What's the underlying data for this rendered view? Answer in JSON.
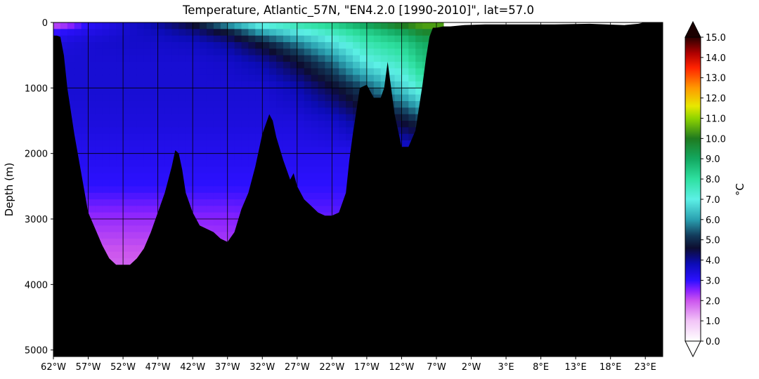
{
  "chart_data": {
    "type": "heatmap",
    "title": "Temperature, Atlantic_57N, \"EN4.2.0 [1990-2010]\", lat=57.0",
    "xlabel": "",
    "ylabel": "Depth (m)",
    "colorbar_label": "°C",
    "xlim": [
      -62,
      25.5
    ],
    "ylim": [
      5100,
      0
    ],
    "x_ticks": [
      {
        "value": -62,
        "label": "62°W"
      },
      {
        "value": -57,
        "label": "57°W"
      },
      {
        "value": -52,
        "label": "52°W"
      },
      {
        "value": -47,
        "label": "47°W"
      },
      {
        "value": -42,
        "label": "42°W"
      },
      {
        "value": -37,
        "label": "37°W"
      },
      {
        "value": -32,
        "label": "32°W"
      },
      {
        "value": -27,
        "label": "27°W"
      },
      {
        "value": -22,
        "label": "22°W"
      },
      {
        "value": -17,
        "label": "17°W"
      },
      {
        "value": -12,
        "label": "12°W"
      },
      {
        "value": -7,
        "label": "7°W"
      },
      {
        "value": -2,
        "label": "2°W"
      },
      {
        "value": 3,
        "label": "3°E"
      },
      {
        "value": 8,
        "label": "8°E"
      },
      {
        "value": 13,
        "label": "13°E"
      },
      {
        "value": 18,
        "label": "18°E"
      },
      {
        "value": 23,
        "label": "23°E"
      }
    ],
    "y_ticks": [
      {
        "value": 0,
        "label": "0"
      },
      {
        "value": 1000,
        "label": "1000"
      },
      {
        "value": 2000,
        "label": "2000"
      },
      {
        "value": 3000,
        "label": "3000"
      },
      {
        "value": 4000,
        "label": "4000"
      },
      {
        "value": 5000,
        "label": "5000"
      }
    ],
    "colorbar": {
      "min": 0,
      "max": 15,
      "extend": "both",
      "ticks": [
        "0.0",
        "1.0",
        "2.0",
        "3.0",
        "4.0",
        "5.0",
        "6.0",
        "7.0",
        "8.0",
        "9.0",
        "10.0",
        "11.0",
        "12.0",
        "13.0",
        "14.0",
        "15.0"
      ],
      "stops": [
        {
          "v": 0,
          "color": "#ffffff"
        },
        {
          "v": 1.0,
          "color": "#f2c4f7"
        },
        {
          "v": 2.0,
          "color": "#cc55ee"
        },
        {
          "v": 2.5,
          "color": "#8a22ff"
        },
        {
          "v": 3.0,
          "color": "#2c10ff"
        },
        {
          "v": 3.8,
          "color": "#0c0cb8"
        },
        {
          "v": 4.6,
          "color": "#0d0d30"
        },
        {
          "v": 5.2,
          "color": "#123a5a"
        },
        {
          "v": 6.0,
          "color": "#2aa0b0"
        },
        {
          "v": 7.0,
          "color": "#5cf0e6"
        },
        {
          "v": 8.0,
          "color": "#2ee0a0"
        },
        {
          "v": 9.0,
          "color": "#13a860"
        },
        {
          "v": 10.0,
          "color": "#1f7a1f"
        },
        {
          "v": 11.0,
          "color": "#8fd400"
        },
        {
          "v": 11.6,
          "color": "#e8e800"
        },
        {
          "v": 12.5,
          "color": "#ff9900"
        },
        {
          "v": 13.5,
          "color": "#ff2200"
        },
        {
          "v": 14.2,
          "color": "#b00000"
        },
        {
          "v": 15.0,
          "color": "#2a0000"
        }
      ],
      "over_color": "#1a0000",
      "under_color": "#ffffff"
    },
    "land_color": "#000000",
    "bathymetry": {
      "lon": [
        -61.5,
        -61,
        -60.5,
        -60,
        -59,
        -58,
        -57,
        -56,
        -55,
        -54,
        -53,
        -52,
        -51,
        -50,
        -49,
        -48,
        -47,
        -46,
        -45,
        -44.5,
        -44,
        -43.5,
        -43,
        -42,
        -41,
        -40,
        -39,
        -38,
        -37,
        -36,
        -35,
        -34,
        -33,
        -32,
        -31,
        -30.5,
        -30,
        -29,
        -28,
        -27.5,
        -27,
        -26,
        -25,
        -24,
        -23,
        -22,
        -21,
        -20,
        -19.5,
        -19,
        -18,
        -17,
        -16,
        -15,
        -14.5,
        -14,
        -13,
        -12,
        -11,
        -10,
        -9.5,
        -9,
        -8.5,
        -8,
        -7.5,
        -7,
        -6,
        -5,
        -3,
        0,
        5,
        10,
        15,
        20,
        22,
        22.8
      ],
      "depth": [
        200,
        220,
        500,
        1000,
        1700,
        2300,
        2900,
        3150,
        3400,
        3600,
        3700,
        3700,
        3700,
        3600,
        3450,
        3200,
        2900,
        2600,
        2200,
        1950,
        2000,
        2250,
        2600,
        2900,
        3100,
        3150,
        3200,
        3300,
        3350,
        3200,
        2850,
        2600,
        2200,
        1700,
        1400,
        1500,
        1750,
        2100,
        2400,
        2300,
        2500,
        2700,
        2800,
        2900,
        2950,
        2950,
        2900,
        2600,
        2100,
        1700,
        1000,
        950,
        1150,
        1150,
        1000,
        600,
        1400,
        1900,
        1900,
        1650,
        1300,
        950,
        550,
        220,
        80,
        80,
        60,
        60,
        40,
        30,
        30,
        30,
        20,
        40,
        20,
        0
      ]
    },
    "temperature_field": {
      "lon": [
        -62,
        -60,
        -57,
        -52,
        -47,
        -42,
        -37,
        -32,
        -27,
        -22,
        -17,
        -12,
        -9
      ],
      "depth": [
        0,
        100,
        300,
        600,
        1000,
        1500,
        2000,
        2500,
        3000,
        3500,
        4000
      ],
      "values": [
        [
          1.5,
          1.8,
          3.0,
          3.5,
          4.0,
          4.8,
          6.5,
          7.5,
          8.0,
          8.5,
          9.5,
          10.5,
          10.8
        ],
        [
          2.8,
          3.0,
          3.2,
          3.5,
          3.8,
          4.2,
          5.0,
          6.5,
          7.2,
          7.8,
          8.5,
          9.3,
          10.0
        ],
        [
          3.3,
          3.4,
          3.5,
          3.6,
          3.6,
          3.7,
          4.0,
          4.8,
          5.8,
          6.8,
          7.8,
          8.3,
          9.0
        ],
        [
          3.5,
          3.5,
          3.5,
          3.5,
          3.5,
          3.5,
          3.6,
          3.9,
          4.6,
          5.6,
          7.0,
          7.6,
          8.5
        ],
        [
          3.5,
          3.5,
          3.5,
          3.5,
          3.5,
          3.5,
          3.5,
          3.5,
          3.8,
          4.5,
          5.4,
          6.5,
          7.5
        ],
        [
          3.4,
          3.4,
          3.4,
          3.4,
          3.4,
          3.4,
          3.4,
          3.4,
          3.4,
          3.6,
          4.2,
          4.6,
          5.2
        ],
        [
          3.2,
          3.2,
          3.2,
          3.2,
          3.2,
          3.2,
          3.2,
          3.2,
          3.2,
          3.2,
          3.2,
          3.3,
          3.3
        ],
        [
          3.0,
          3.0,
          3.0,
          3.0,
          3.0,
          3.0,
          3.0,
          3.0,
          3.0,
          3.0,
          3.0,
          3.0,
          3.0
        ],
        [
          2.4,
          2.4,
          2.4,
          2.4,
          2.4,
          2.5,
          2.5,
          2.6,
          2.7,
          2.7,
          2.7,
          2.7,
          2.7
        ],
        [
          2.0,
          2.0,
          2.0,
          2.0,
          2.0,
          2.1,
          2.2,
          2.3,
          2.4,
          2.5,
          2.5,
          2.5,
          2.5
        ],
        [
          1.7,
          1.7,
          1.7,
          1.7,
          1.7,
          1.8,
          1.9,
          2.0,
          2.1,
          2.2,
          2.2,
          2.2,
          2.2
        ]
      ]
    },
    "grid": true,
    "legend": "colorbar-right"
  }
}
